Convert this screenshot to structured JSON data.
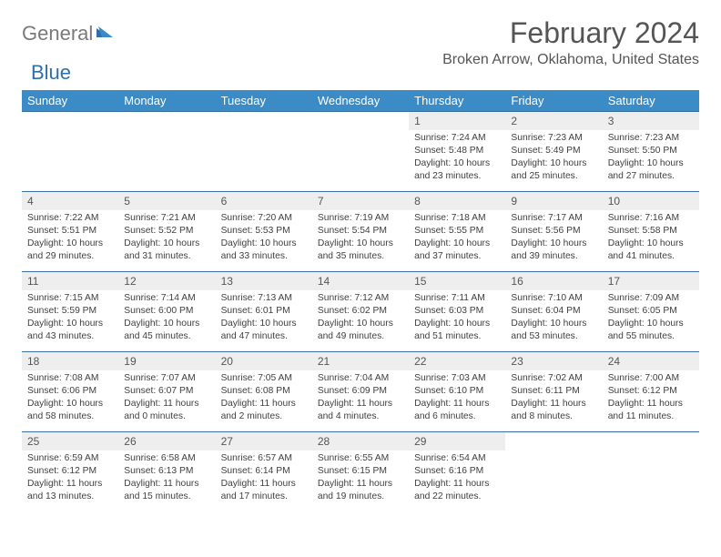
{
  "brand": {
    "name_part1": "General",
    "name_part2": "Blue",
    "color_gray": "#7a7a7a",
    "color_blue": "#2f6fa8"
  },
  "title": {
    "month": "February 2024",
    "location": "Broken Arrow, Oklahoma, United States"
  },
  "style": {
    "header_bg": "#3b8bc6",
    "header_text": "#ffffff",
    "daynum_bg": "#eeeeee",
    "border_color": "#3b6fa0",
    "body_text": "#404040"
  },
  "days_of_week": [
    "Sunday",
    "Monday",
    "Tuesday",
    "Wednesday",
    "Thursday",
    "Friday",
    "Saturday"
  ],
  "weeks": [
    [
      null,
      null,
      null,
      null,
      {
        "n": "1",
        "sr": "7:24 AM",
        "ss": "5:48 PM",
        "dl": "10 hours and 23 minutes."
      },
      {
        "n": "2",
        "sr": "7:23 AM",
        "ss": "5:49 PM",
        "dl": "10 hours and 25 minutes."
      },
      {
        "n": "3",
        "sr": "7:23 AM",
        "ss": "5:50 PM",
        "dl": "10 hours and 27 minutes."
      }
    ],
    [
      {
        "n": "4",
        "sr": "7:22 AM",
        "ss": "5:51 PM",
        "dl": "10 hours and 29 minutes."
      },
      {
        "n": "5",
        "sr": "7:21 AM",
        "ss": "5:52 PM",
        "dl": "10 hours and 31 minutes."
      },
      {
        "n": "6",
        "sr": "7:20 AM",
        "ss": "5:53 PM",
        "dl": "10 hours and 33 minutes."
      },
      {
        "n": "7",
        "sr": "7:19 AM",
        "ss": "5:54 PM",
        "dl": "10 hours and 35 minutes."
      },
      {
        "n": "8",
        "sr": "7:18 AM",
        "ss": "5:55 PM",
        "dl": "10 hours and 37 minutes."
      },
      {
        "n": "9",
        "sr": "7:17 AM",
        "ss": "5:56 PM",
        "dl": "10 hours and 39 minutes."
      },
      {
        "n": "10",
        "sr": "7:16 AM",
        "ss": "5:58 PM",
        "dl": "10 hours and 41 minutes."
      }
    ],
    [
      {
        "n": "11",
        "sr": "7:15 AM",
        "ss": "5:59 PM",
        "dl": "10 hours and 43 minutes."
      },
      {
        "n": "12",
        "sr": "7:14 AM",
        "ss": "6:00 PM",
        "dl": "10 hours and 45 minutes."
      },
      {
        "n": "13",
        "sr": "7:13 AM",
        "ss": "6:01 PM",
        "dl": "10 hours and 47 minutes."
      },
      {
        "n": "14",
        "sr": "7:12 AM",
        "ss": "6:02 PM",
        "dl": "10 hours and 49 minutes."
      },
      {
        "n": "15",
        "sr": "7:11 AM",
        "ss": "6:03 PM",
        "dl": "10 hours and 51 minutes."
      },
      {
        "n": "16",
        "sr": "7:10 AM",
        "ss": "6:04 PM",
        "dl": "10 hours and 53 minutes."
      },
      {
        "n": "17",
        "sr": "7:09 AM",
        "ss": "6:05 PM",
        "dl": "10 hours and 55 minutes."
      }
    ],
    [
      {
        "n": "18",
        "sr": "7:08 AM",
        "ss": "6:06 PM",
        "dl": "10 hours and 58 minutes."
      },
      {
        "n": "19",
        "sr": "7:07 AM",
        "ss": "6:07 PM",
        "dl": "11 hours and 0 minutes."
      },
      {
        "n": "20",
        "sr": "7:05 AM",
        "ss": "6:08 PM",
        "dl": "11 hours and 2 minutes."
      },
      {
        "n": "21",
        "sr": "7:04 AM",
        "ss": "6:09 PM",
        "dl": "11 hours and 4 minutes."
      },
      {
        "n": "22",
        "sr": "7:03 AM",
        "ss": "6:10 PM",
        "dl": "11 hours and 6 minutes."
      },
      {
        "n": "23",
        "sr": "7:02 AM",
        "ss": "6:11 PM",
        "dl": "11 hours and 8 minutes."
      },
      {
        "n": "24",
        "sr": "7:00 AM",
        "ss": "6:12 PM",
        "dl": "11 hours and 11 minutes."
      }
    ],
    [
      {
        "n": "25",
        "sr": "6:59 AM",
        "ss": "6:12 PM",
        "dl": "11 hours and 13 minutes."
      },
      {
        "n": "26",
        "sr": "6:58 AM",
        "ss": "6:13 PM",
        "dl": "11 hours and 15 minutes."
      },
      {
        "n": "27",
        "sr": "6:57 AM",
        "ss": "6:14 PM",
        "dl": "11 hours and 17 minutes."
      },
      {
        "n": "28",
        "sr": "6:55 AM",
        "ss": "6:15 PM",
        "dl": "11 hours and 19 minutes."
      },
      {
        "n": "29",
        "sr": "6:54 AM",
        "ss": "6:16 PM",
        "dl": "11 hours and 22 minutes."
      },
      null,
      null
    ]
  ],
  "labels": {
    "sunrise": "Sunrise: ",
    "sunset": "Sunset: ",
    "daylight": "Daylight: "
  }
}
